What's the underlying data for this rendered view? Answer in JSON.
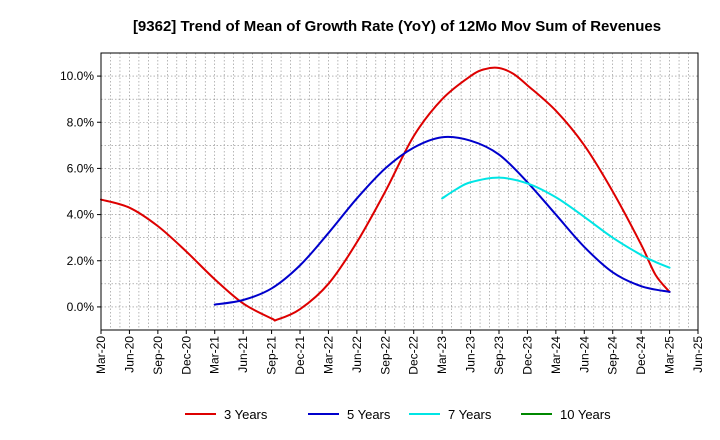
{
  "chart_data": {
    "type": "line",
    "title": "[9362]  Trend of Mean of Growth Rate (YoY) of 12Mo Mov Sum of Revenues",
    "xlabel": "",
    "ylabel": "",
    "x_ticks": [
      "Mar-20",
      "Jun-20",
      "Sep-20",
      "Dec-20",
      "Mar-21",
      "Jun-21",
      "Sep-21",
      "Dec-21",
      "Mar-22",
      "Jun-22",
      "Sep-22",
      "Dec-22",
      "Mar-23",
      "Jun-23",
      "Sep-23",
      "Dec-23",
      "Mar-24",
      "Jun-24",
      "Sep-24",
      "Dec-24",
      "Mar-25",
      "Jun-25"
    ],
    "y_ticks": [
      "0.0%",
      "2.0%",
      "4.0%",
      "6.0%",
      "8.0%",
      "10.0%"
    ],
    "ylim": [
      -1.0,
      11.0
    ],
    "grid": true,
    "legend_position": "bottom",
    "series": [
      {
        "name": "3 Years",
        "color": "#dd0000",
        "points": [
          [
            0,
            4.65
          ],
          [
            1,
            4.3
          ],
          [
            2,
            3.5
          ],
          [
            3,
            2.4
          ],
          [
            4,
            1.2
          ],
          [
            5,
            0.15
          ],
          [
            6,
            -0.5
          ],
          [
            6.2,
            -0.55
          ],
          [
            7,
            -0.1
          ],
          [
            8,
            1.0
          ],
          [
            9,
            2.8
          ],
          [
            10,
            5.0
          ],
          [
            11,
            7.4
          ],
          [
            12,
            9.0
          ],
          [
            13,
            10.0
          ],
          [
            13.5,
            10.3
          ],
          [
            14,
            10.35
          ],
          [
            14.5,
            10.1
          ],
          [
            15,
            9.6
          ],
          [
            16,
            8.5
          ],
          [
            17,
            7.0
          ],
          [
            18,
            5.0
          ],
          [
            19,
            2.7
          ],
          [
            19.5,
            1.4
          ],
          [
            20,
            0.65
          ]
        ]
      },
      {
        "name": "5 Years",
        "color": "#0000cc",
        "points": [
          [
            4,
            0.1
          ],
          [
            5,
            0.3
          ],
          [
            6,
            0.8
          ],
          [
            7,
            1.8
          ],
          [
            8,
            3.2
          ],
          [
            9,
            4.7
          ],
          [
            10,
            6.0
          ],
          [
            11,
            6.9
          ],
          [
            12,
            7.35
          ],
          [
            13,
            7.2
          ],
          [
            14,
            6.6
          ],
          [
            15,
            5.4
          ],
          [
            16,
            4.0
          ],
          [
            17,
            2.6
          ],
          [
            18,
            1.5
          ],
          [
            19,
            0.9
          ],
          [
            20,
            0.65
          ]
        ]
      },
      {
        "name": "7 Years",
        "color": "#00e5e5",
        "points": [
          [
            12,
            4.7
          ],
          [
            12.5,
            5.1
          ],
          [
            13,
            5.4
          ],
          [
            14,
            5.6
          ],
          [
            15,
            5.35
          ],
          [
            16,
            4.75
          ],
          [
            17,
            3.9
          ],
          [
            18,
            3.0
          ],
          [
            19,
            2.25
          ],
          [
            19.5,
            1.95
          ],
          [
            20,
            1.7
          ]
        ]
      },
      {
        "name": "10 Years",
        "color": "#008800",
        "points": []
      }
    ]
  }
}
